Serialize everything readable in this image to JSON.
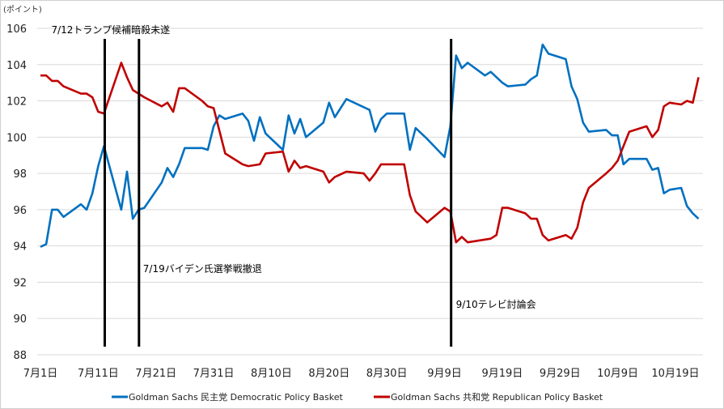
{
  "chart_data": {
    "type": "line",
    "unit_label": "(ポイント)",
    "title": "",
    "xlabel": "",
    "ylabel": "(ポイント)",
    "x_is_days_since": "7月1日",
    "xlim": [
      0,
      115
    ],
    "ylim": [
      88,
      106
    ],
    "y_ticks": [
      88,
      90,
      92,
      94,
      96,
      98,
      100,
      102,
      104,
      106
    ],
    "x_ticks": [
      {
        "day": 0,
        "label": "7月1日"
      },
      {
        "day": 10,
        "label": "7月11日"
      },
      {
        "day": 20,
        "label": "7月21日"
      },
      {
        "day": 30,
        "label": "7月31日"
      },
      {
        "day": 40,
        "label": "8月10日"
      },
      {
        "day": 50,
        "label": "8月20日"
      },
      {
        "day": 60,
        "label": "8月30日"
      },
      {
        "day": 70,
        "label": "9月9日"
      },
      {
        "day": 80,
        "label": "9月19日"
      },
      {
        "day": 90,
        "label": "9月29日"
      },
      {
        "day": 100,
        "label": "10月9日"
      },
      {
        "day": 110,
        "label": "10月19日"
      }
    ],
    "grid": true,
    "legend_position": "bottom",
    "events": [
      {
        "day": 11,
        "label": "7/12トランプ候補暗殺未遂",
        "label_pos": "top"
      },
      {
        "day": 17,
        "label": "7/19バイデン氏選挙戦撤退",
        "label_pos": "middle"
      },
      {
        "day": 71,
        "label": "9/10テレビ討論会",
        "label_pos": "lower"
      }
    ],
    "series": [
      {
        "name": "Goldman Sachs 民主党  Democratic Policy Basket",
        "color": "#0070C0",
        "points": [
          [
            0,
            93.95
          ],
          [
            1,
            94.1
          ],
          [
            2,
            96.0
          ],
          [
            3,
            96.0
          ],
          [
            4,
            95.6
          ],
          [
            7,
            96.3
          ],
          [
            8,
            96.0
          ],
          [
            9,
            96.9
          ],
          [
            10,
            98.4
          ],
          [
            11,
            99.5
          ],
          [
            14,
            96.0
          ],
          [
            15,
            98.1
          ],
          [
            16,
            95.5
          ],
          [
            17,
            96.0
          ],
          [
            18,
            96.1
          ],
          [
            21,
            97.5
          ],
          [
            22,
            98.3
          ],
          [
            23,
            97.8
          ],
          [
            24,
            98.5
          ],
          [
            25,
            99.4
          ],
          [
            28,
            99.4
          ],
          [
            29,
            99.3
          ],
          [
            30,
            100.6
          ],
          [
            31,
            101.2
          ],
          [
            32,
            101.0
          ],
          [
            35,
            101.3
          ],
          [
            36,
            100.9
          ],
          [
            37,
            99.8
          ],
          [
            38,
            101.1
          ],
          [
            39,
            100.2
          ],
          [
            42,
            99.3
          ],
          [
            43,
            101.2
          ],
          [
            44,
            100.2
          ],
          [
            45,
            101.0
          ],
          [
            46,
            100.0
          ],
          [
            49,
            100.8
          ],
          [
            50,
            101.9
          ],
          [
            51,
            101.1
          ],
          [
            53,
            102.1
          ],
          [
            57,
            101.5
          ],
          [
            58,
            100.3
          ],
          [
            59,
            101.0
          ],
          [
            60,
            101.3
          ],
          [
            63,
            101.3
          ],
          [
            64,
            99.3
          ],
          [
            65,
            100.5
          ],
          [
            67,
            99.9
          ],
          [
            70,
            98.9
          ],
          [
            71,
            100.6
          ],
          [
            72,
            104.5
          ],
          [
            73,
            103.8
          ],
          [
            74,
            104.1
          ],
          [
            77,
            103.4
          ],
          [
            78,
            103.6
          ],
          [
            80,
            103.0
          ],
          [
            81,
            102.8
          ],
          [
            84,
            102.9
          ],
          [
            85,
            103.2
          ],
          [
            86,
            103.4
          ],
          [
            87,
            105.1
          ],
          [
            88,
            104.6
          ],
          [
            91,
            104.3
          ],
          [
            92,
            102.8
          ],
          [
            93,
            102.1
          ],
          [
            94,
            100.8
          ],
          [
            95,
            100.3
          ],
          [
            98,
            100.4
          ],
          [
            99,
            100.1
          ],
          [
            100,
            100.1
          ],
          [
            101,
            98.5
          ],
          [
            102,
            98.8
          ],
          [
            105,
            98.8
          ],
          [
            106,
            98.2
          ],
          [
            107,
            98.3
          ],
          [
            108,
            96.9
          ],
          [
            109,
            97.1
          ],
          [
            111,
            97.2
          ],
          [
            112,
            96.2
          ],
          [
            113,
            95.8
          ],
          [
            114,
            95.5
          ]
        ]
      },
      {
        "name": "Goldman Sachs 共和党  Republican Policy Basket",
        "color": "#C00000",
        "points": [
          [
            0,
            103.4
          ],
          [
            1,
            103.4
          ],
          [
            2,
            103.1
          ],
          [
            3,
            103.1
          ],
          [
            4,
            102.8
          ],
          [
            7,
            102.4
          ],
          [
            8,
            102.4
          ],
          [
            9,
            102.2
          ],
          [
            10,
            101.4
          ],
          [
            11,
            101.3
          ],
          [
            14,
            104.1
          ],
          [
            15,
            103.3
          ],
          [
            16,
            102.6
          ],
          [
            17,
            102.4
          ],
          [
            18,
            102.2
          ],
          [
            21,
            101.7
          ],
          [
            22,
            101.9
          ],
          [
            23,
            101.4
          ],
          [
            24,
            102.7
          ],
          [
            25,
            102.7
          ],
          [
            28,
            102.0
          ],
          [
            29,
            101.7
          ],
          [
            30,
            101.6
          ],
          [
            32,
            99.1
          ],
          [
            35,
            98.5
          ],
          [
            36,
            98.4
          ],
          [
            38,
            98.5
          ],
          [
            39,
            99.1
          ],
          [
            42,
            99.2
          ],
          [
            43,
            98.1
          ],
          [
            44,
            98.7
          ],
          [
            45,
            98.3
          ],
          [
            46,
            98.4
          ],
          [
            49,
            98.1
          ],
          [
            50,
            97.5
          ],
          [
            51,
            97.8
          ],
          [
            53,
            98.1
          ],
          [
            56,
            98.0
          ],
          [
            57,
            97.6
          ],
          [
            58,
            98.0
          ],
          [
            59,
            98.5
          ],
          [
            63,
            98.5
          ],
          [
            64,
            96.8
          ],
          [
            65,
            95.9
          ],
          [
            66,
            95.6
          ],
          [
            67,
            95.3
          ],
          [
            70,
            96.1
          ],
          [
            71,
            95.9
          ],
          [
            72,
            94.2
          ],
          [
            73,
            94.5
          ],
          [
            74,
            94.2
          ],
          [
            78,
            94.4
          ],
          [
            79,
            94.6
          ],
          [
            80,
            96.1
          ],
          [
            81,
            96.1
          ],
          [
            84,
            95.8
          ],
          [
            85,
            95.5
          ],
          [
            86,
            95.5
          ],
          [
            87,
            94.6
          ],
          [
            88,
            94.3
          ],
          [
            91,
            94.6
          ],
          [
            92,
            94.4
          ],
          [
            93,
            95.0
          ],
          [
            94,
            96.4
          ],
          [
            95,
            97.2
          ],
          [
            98,
            98.0
          ],
          [
            99,
            98.3
          ],
          [
            100,
            98.7
          ],
          [
            101,
            99.5
          ],
          [
            102,
            100.3
          ],
          [
            105,
            100.6
          ],
          [
            106,
            100.0
          ],
          [
            107,
            100.4
          ],
          [
            108,
            101.7
          ],
          [
            109,
            101.9
          ],
          [
            111,
            101.8
          ],
          [
            112,
            102.0
          ],
          [
            113,
            101.9
          ],
          [
            114,
            103.3
          ]
        ]
      }
    ]
  }
}
